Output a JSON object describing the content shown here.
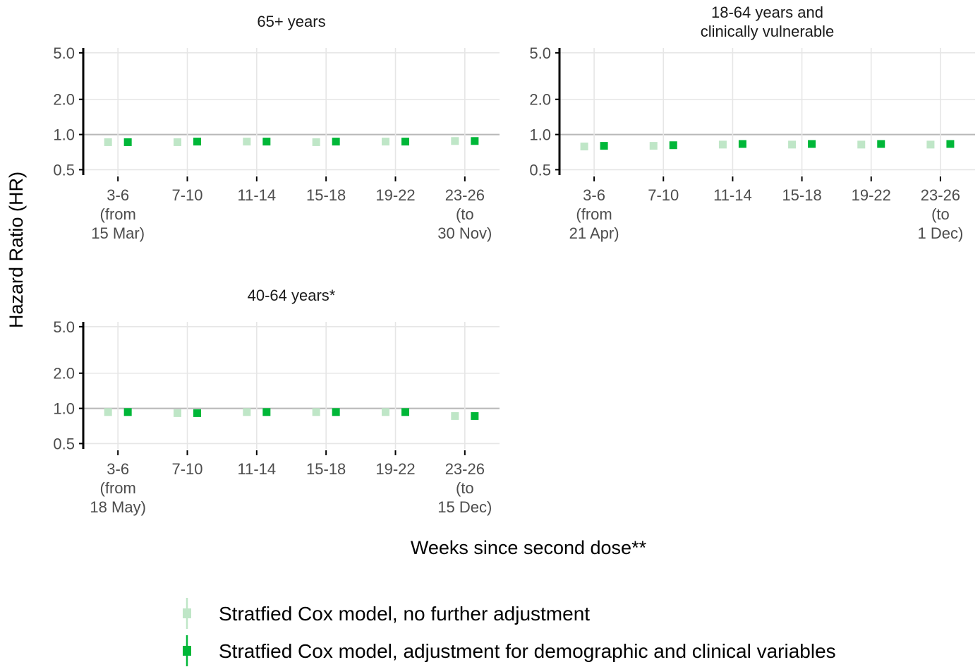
{
  "colors": {
    "unadjusted": "#bfe6c7",
    "adjusted": "#00b738",
    "grid": "#e6e6e6",
    "reference_line": "#b8b8b8",
    "axis": "#000000",
    "tick_text": "#4d4d4d",
    "text": "#1a1a1a"
  },
  "chart_data": {
    "type": "scatter",
    "ylabel": "Hazard Ratio (HR)",
    "xlabel": "Weeks since second dose**",
    "y_scale": "log",
    "ylim": [
      0.45,
      5.5
    ],
    "y_ticks": [
      0.5,
      1.0,
      2.0,
      5.0
    ],
    "y_tick_labels": [
      "0.5",
      "1.0",
      "2.0",
      "5.0"
    ],
    "reference_line_y": 1.0,
    "grid": true,
    "legend_position": "bottom",
    "series": [
      {
        "key": "unadjusted",
        "name": "Stratfied Cox model, no further adjustment"
      },
      {
        "key": "adjusted",
        "name": "Stratfied Cox model, adjustment for demographic and clinical variables"
      }
    ],
    "panels": [
      {
        "title": [
          "65+ years"
        ],
        "categories": [
          [
            "3-6",
            "(from",
            "15 Mar)"
          ],
          [
            "7-10"
          ],
          [
            "11-14"
          ],
          [
            "15-18"
          ],
          [
            "19-22"
          ],
          [
            "23-26",
            "(to",
            "30 Nov)"
          ]
        ],
        "values": {
          "unadjusted": [
            0.86,
            0.86,
            0.87,
            0.86,
            0.87,
            0.88
          ],
          "adjusted": [
            0.86,
            0.87,
            0.87,
            0.87,
            0.87,
            0.88
          ]
        }
      },
      {
        "title": [
          "18-64 years and",
          "clinically vulnerable"
        ],
        "categories": [
          [
            "3-6",
            "(from",
            "21 Apr)"
          ],
          [
            "7-10"
          ],
          [
            "11-14"
          ],
          [
            "15-18"
          ],
          [
            "19-22"
          ],
          [
            "23-26",
            "(to",
            "1 Dec)"
          ]
        ],
        "values": {
          "unadjusted": [
            0.79,
            0.8,
            0.82,
            0.82,
            0.82,
            0.82
          ],
          "adjusted": [
            0.8,
            0.81,
            0.83,
            0.83,
            0.83,
            0.83
          ]
        }
      },
      {
        "title": [
          "40-64 years*"
        ],
        "categories": [
          [
            "3-6",
            "(from",
            "18 May)"
          ],
          [
            "7-10"
          ],
          [
            "11-14"
          ],
          [
            "15-18"
          ],
          [
            "19-22"
          ],
          [
            "23-26",
            "(to",
            "15 Dec)"
          ]
        ],
        "values": {
          "unadjusted": [
            0.93,
            0.91,
            0.93,
            0.93,
            0.93,
            0.86
          ],
          "adjusted": [
            0.93,
            0.91,
            0.93,
            0.93,
            0.93,
            0.86
          ]
        }
      }
    ]
  }
}
